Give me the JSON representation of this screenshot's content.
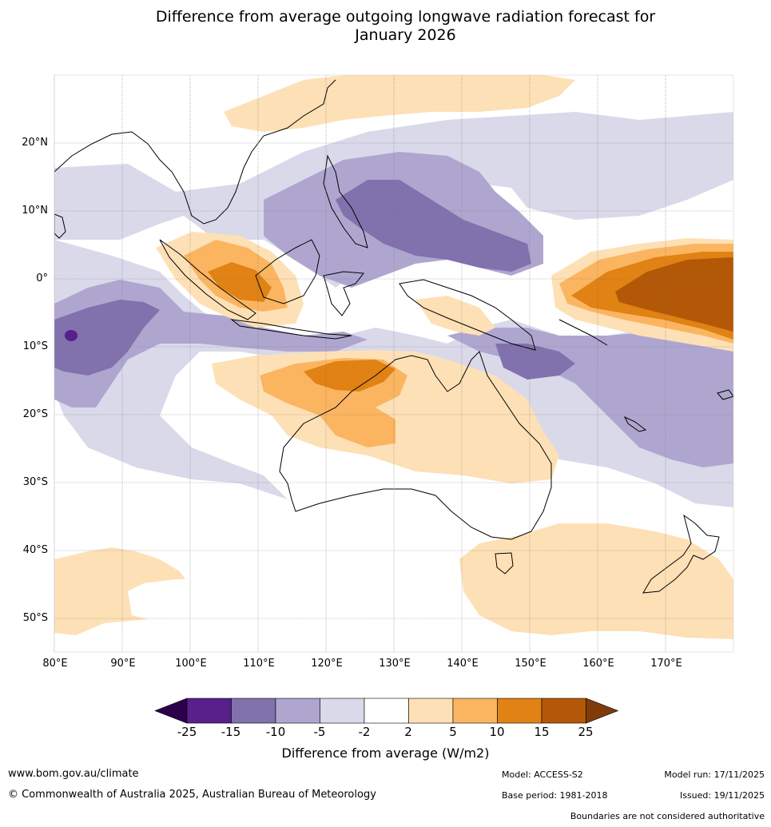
{
  "title_line1": "Difference from average outgoing longwave radiation forecast for",
  "title_line2": "January 2026",
  "lat_labels": [
    "20°N",
    "10°N",
    "0°",
    "10°S",
    "20°S",
    "30°S",
    "40°S",
    "50°S"
  ],
  "lon_labels": [
    "80°E",
    "90°E",
    "100°E",
    "110°E",
    "120°E",
    "130°E",
    "140°E",
    "150°E",
    "160°E",
    "170°E"
  ],
  "colorbar": {
    "ticks": [
      "-25",
      "-15",
      "-10",
      "-5",
      "-2",
      "2",
      "5",
      "10",
      "15",
      "25"
    ],
    "colors": [
      "#57208b",
      "#8171ad",
      "#afa6d0",
      "#d9d9ea",
      "#ffffff",
      "#fee0b6",
      "#fbb561",
      "#e08214",
      "#b35807"
    ],
    "under_color": "#2d004b",
    "over_color": "#7f3b08",
    "label": "Difference from average (W/m2)"
  },
  "footer": {
    "website": "www.bom.gov.au/climate",
    "copyright": "© Commonwealth of Australia 2025, Australian Bureau of Meteorology",
    "model": "Model: ACCESS-S2",
    "base_period": "Base period: 1981-2018",
    "model_run": "Model run: 17/11/2025",
    "issued": "Issued: 19/11/2025",
    "disclaimer": "Boundaries are not considered authoritative"
  }
}
